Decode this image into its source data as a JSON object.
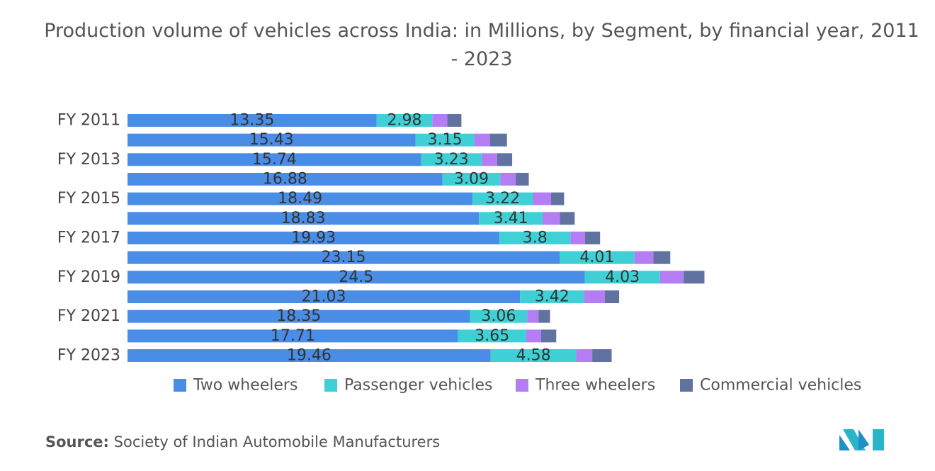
{
  "chart_data": {
    "type": "stacked-bar-horizontal",
    "title": "Production volume of vehicles across India: in Millions, by Segment, by financial year, 2011 - 2023",
    "categories": [
      "FY 2011",
      null,
      "FY 2013",
      null,
      "FY 2015",
      null,
      "FY 2017",
      null,
      "FY 2019",
      null,
      "FY 2021",
      null,
      "FY 2023"
    ],
    "series": [
      {
        "name": "Two wheelers",
        "color": "#4a8de6",
        "values": [
          13.35,
          15.43,
          15.74,
          16.88,
          18.49,
          18.83,
          19.93,
          23.15,
          24.5,
          21.03,
          18.35,
          17.71,
          19.46
        ]
      },
      {
        "name": "Passenger vehicles",
        "color": "#3fd0d5",
        "values": [
          2.98,
          3.15,
          3.23,
          3.09,
          3.22,
          3.41,
          3.8,
          4.01,
          4.03,
          3.42,
          3.06,
          3.65,
          4.58
        ]
      },
      {
        "name": "Three wheelers",
        "color": "#b47df4",
        "values": [
          0.8,
          0.84,
          0.84,
          0.83,
          0.98,
          0.93,
          0.78,
          1.02,
          1.27,
          1.13,
          0.61,
          0.8,
          0.86
        ]
      },
      {
        "name": "Commercial vehicles",
        "color": "#5f72a0",
        "values": [
          0.76,
          0.91,
          0.8,
          0.7,
          0.7,
          0.79,
          0.81,
          0.9,
          1.11,
          0.76,
          0.62,
          0.81,
          1.04
        ]
      }
    ],
    "show_value_labels": [
      true,
      true,
      false,
      false
    ]
  },
  "source": {
    "label": "Source:",
    "text": "Society of Indian Automobile Manufacturers"
  }
}
